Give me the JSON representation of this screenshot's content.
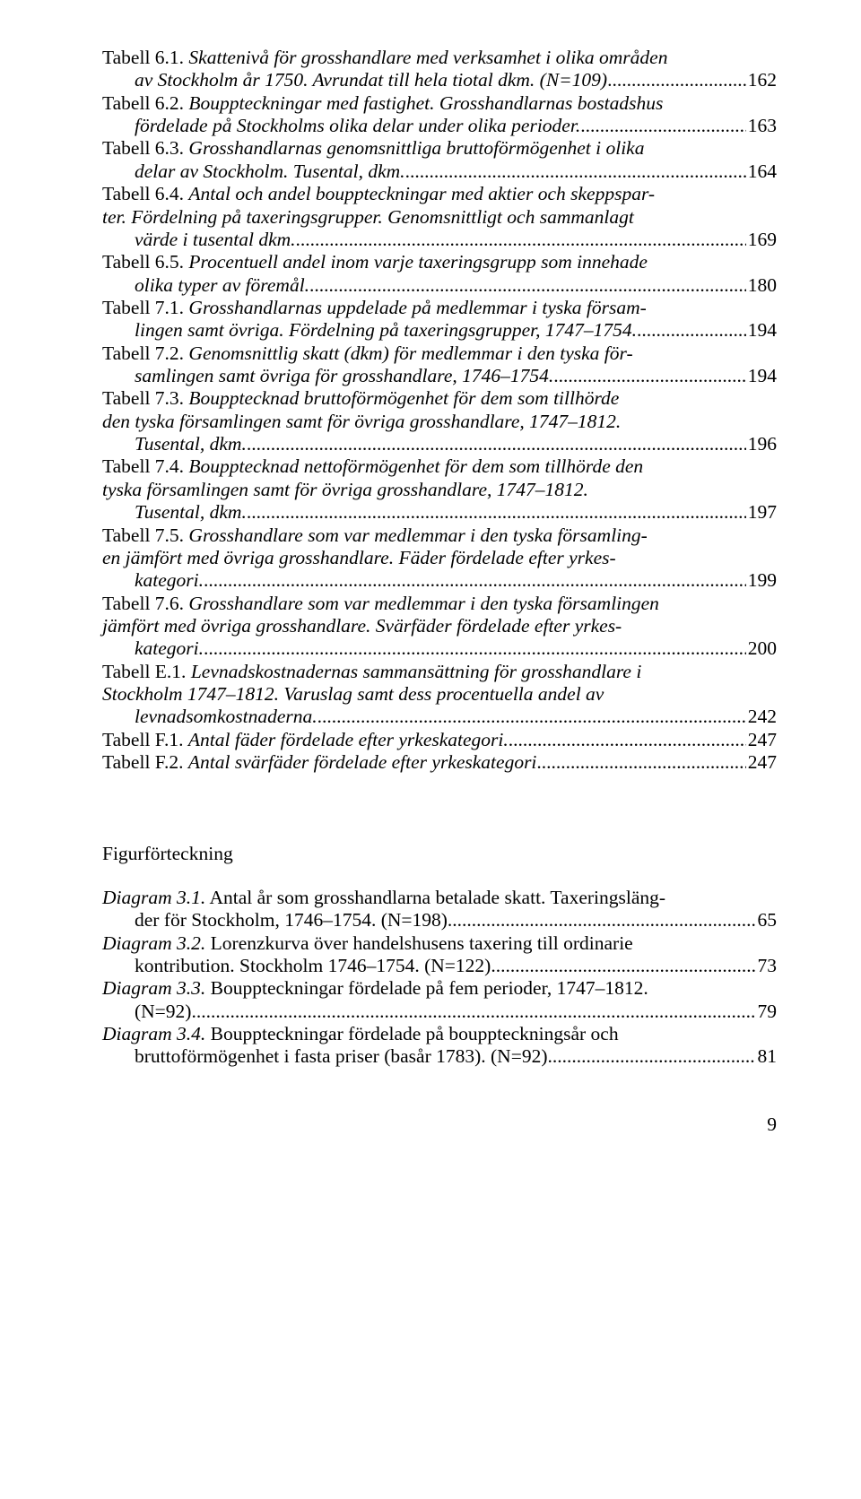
{
  "toc": {
    "entries": [
      {
        "label": "Tabell 6.1.",
        "desc": "Skattenivå för grosshandlare med verksamhet i olika områden av Stockholm år 1750. Avrundat till hela tiotal dkm. (N=109)",
        "page": "162"
      },
      {
        "label": "Tabell 6.2.",
        "desc": "Bouppteckningar med fastighet. Grosshandlarnas bostadshus fördelade på Stockholms olika delar under olika perioder.",
        "page": "163"
      },
      {
        "label": "Tabell 6.3.",
        "desc": "Grosshandlarnas genomsnittliga bruttoförmögenhet i olika delar av Stockholm. Tusental, dkm.",
        "page": "164"
      },
      {
        "label": "Tabell 6.4.",
        "desc": "Antal och andel bouppteckningar med aktier och skeppsparter. Fördelning på taxeringsgrupper. Genomsnittligt och sammanlagt värde i tusental dkm.",
        "page": "169"
      },
      {
        "label": "Tabell 6.5.",
        "desc": "Procentuell andel inom varje taxeringsgrupp som innehade olika typer av föremål.",
        "page": "180"
      },
      {
        "label": "Tabell 7.1.",
        "desc": "Grosshandlarnas uppdelade på medlemmar i tyska församlingen samt övriga. Fördelning på taxeringsgrupper, 1747–1754.",
        "page": "194"
      },
      {
        "label": "Tabell 7.2.",
        "desc": "Genomsnittlig skatt (dkm) för medlemmar i den tyska församlingen samt övriga för grosshandlare, 1746–1754.",
        "page": "194"
      },
      {
        "label": "Tabell 7.3.",
        "desc": "Boupptecknad bruttoförmögenhet för dem som tillhörde den tyska församlingen samt för övriga grosshandlare, 1747–1812. Tusental, dkm.",
        "page": "196"
      },
      {
        "label": "Tabell 7.4.",
        "desc": "Boupptecknad nettoförmögenhet för dem som tillhörde den tyska församlingen samt för övriga grosshandlare, 1747–1812. Tusental, dkm.",
        "page": "197"
      },
      {
        "label": "Tabell 7.5.",
        "desc": "Grosshandlare som var medlemmar i den tyska församlingen jämfört med övriga grosshandlare. Fäder fördelade efter yrkeskategori.",
        "page": "199"
      },
      {
        "label": "Tabell 7.6.",
        "desc": "Grosshandlare som var medlemmar i den tyska församlingen jämfört med övriga grosshandlare. Svärfäder fördelade efter yrkeskategori.",
        "page": "200"
      },
      {
        "label": "Tabell E.1.",
        "desc": "Levnadskostnadernas sammansättning för grosshandlare i Stockholm 1747–1812. Varuslag samt dess procentuella andel av levnadsomkostnaderna.",
        "page": "242"
      },
      {
        "label": "Tabell F.1.",
        "desc": "Antal fäder fördelade efter yrkeskategori.",
        "page": "247"
      },
      {
        "label": "Tabell F.2.",
        "desc": "Antal svärfäder fördelade efter yrkeskategori",
        "page": "247"
      }
    ]
  },
  "figureHeading": "Figurförteckning",
  "figures": {
    "entries": [
      {
        "label": "Diagram 3.1.",
        "desc": "Antal år som grosshandlarna betalade skatt. Taxeringslängder för Stockholm, 1746–1754. (N=198)",
        "page": "65"
      },
      {
        "label": "Diagram 3.2.",
        "desc": "Lorenzkurva över handelshusens taxering till ordinarie kontribution. Stockholm 1746–1754. (N=122)",
        "page": "73"
      },
      {
        "label": "Diagram 3.3.",
        "desc": "Bouppteckningar fördelade på fem perioder, 1747–1812. (N=92)",
        "page": "79"
      },
      {
        "label": "Diagram 3.4.",
        "desc": "Bouppteckningar fördelade på bouppteckningsår och bruttoförmögenhet i fasta priser (basår 1783). (N=92).",
        "page": "81"
      }
    ]
  },
  "pageNumber": "9"
}
